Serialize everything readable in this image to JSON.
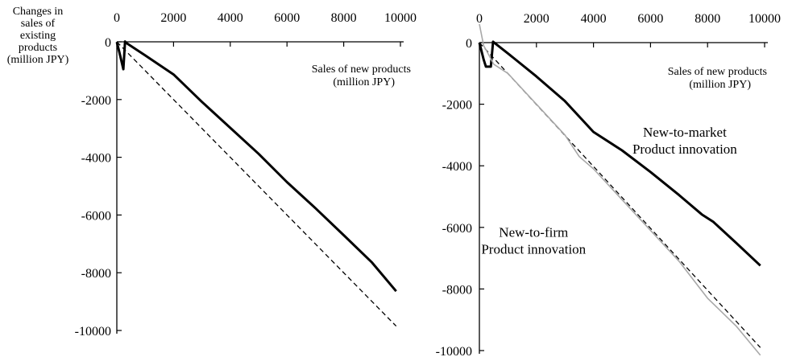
{
  "chart_data": [
    {
      "type": "line",
      "ylabel": [
        "Changes in",
        "sales of",
        "existing",
        "products",
        "(million JPY)"
      ],
      "xlabel": [
        "Sales of new products",
        "(million JPY)"
      ],
      "xlim": [
        0,
        10000
      ],
      "ylim": [
        -10000,
        0
      ],
      "x_ticks": [
        0,
        2000,
        4000,
        6000,
        8000,
        10000
      ],
      "y_ticks": [
        0,
        -2000,
        -4000,
        -6000,
        -8000,
        -10000
      ],
      "x_tick_labels": [
        "0",
        "2000",
        "4000",
        "6000",
        "8000",
        "10000"
      ],
      "y_tick_labels": [
        "0",
        "-2000",
        "-4000",
        "-6000",
        "-8000",
        "-10000"
      ],
      "annotations": [],
      "series": [
        {
          "style": "solid-bold",
          "color": "#000000",
          "points": [
            [
              0,
              -10
            ],
            [
              100,
              -400
            ],
            [
              230,
              -950
            ],
            [
              290,
              10
            ],
            [
              320,
              -30
            ],
            [
              1000,
              -470
            ],
            [
              2000,
              -1130
            ],
            [
              3000,
              -2080
            ],
            [
              4000,
              -2980
            ],
            [
              5000,
              -3880
            ],
            [
              6000,
              -4860
            ],
            [
              7000,
              -5760
            ],
            [
              8000,
              -6700
            ],
            [
              9000,
              -7650
            ],
            [
              9850,
              -8640
            ]
          ]
        },
        {
          "style": "dashed",
          "color": "#000000",
          "points": [
            [
              0,
              0
            ],
            [
              9850,
              -9850
            ]
          ]
        }
      ]
    },
    {
      "type": "line",
      "ylabel": [],
      "xlabel": [
        "Sales of new products",
        "(million JPY)"
      ],
      "xlim": [
        0,
        10000
      ],
      "ylim": [
        -10000,
        0
      ],
      "x_ticks": [
        0,
        2000,
        4000,
        6000,
        8000,
        10000
      ],
      "y_ticks": [
        0,
        -2000,
        -4000,
        -6000,
        -8000,
        -10000
      ],
      "x_tick_labels": [
        "0",
        "2000",
        "4000",
        "6000",
        "8000",
        "10000"
      ],
      "y_tick_labels": [
        "0",
        "-2000",
        "-4000",
        "-6000",
        "-8000",
        "-10000"
      ],
      "annotations": [
        {
          "lines": [
            "New-to-market",
            "Product innovation"
          ],
          "at": [
            7200,
            -3050
          ]
        },
        {
          "lines": [
            "New-to-firm",
            "Product innovation"
          ],
          "at": [
            1900,
            -6300
          ]
        }
      ],
      "series": [
        {
          "name": "New-to-market Product innovation",
          "style": "solid-bold",
          "color": "#000000",
          "points": [
            [
              0,
              0
            ],
            [
              150,
              -550
            ],
            [
              230,
              -780
            ],
            [
              400,
              -780
            ],
            [
              480,
              30
            ],
            [
              1000,
              -350
            ],
            [
              2000,
              -1100
            ],
            [
              3000,
              -1900
            ],
            [
              4000,
              -2900
            ],
            [
              5000,
              -3500
            ],
            [
              6000,
              -4200
            ],
            [
              7000,
              -4950
            ],
            [
              7800,
              -5580
            ],
            [
              8200,
              -5820
            ],
            [
              9000,
              -6500
            ],
            [
              9850,
              -7240
            ]
          ]
        },
        {
          "style": "dashed",
          "color": "#000000",
          "points": [
            [
              0,
              0
            ],
            [
              9850,
              -9900
            ]
          ]
        },
        {
          "name": "New-to-firm Product innovation",
          "style": "solid-gray",
          "color": "#a8a8a8",
          "points": [
            [
              0,
              600
            ],
            [
              150,
              -100
            ],
            [
              300,
              -350
            ],
            [
              500,
              -700
            ],
            [
              1000,
              -1000
            ],
            [
              2000,
              -2000
            ],
            [
              3000,
              -3000
            ],
            [
              3500,
              -3700
            ],
            [
              4000,
              -4100
            ],
            [
              5000,
              -5100
            ],
            [
              6000,
              -6100
            ],
            [
              7000,
              -7100
            ],
            [
              8000,
              -8300
            ],
            [
              9000,
              -9200
            ],
            [
              9850,
              -10150
            ]
          ]
        }
      ]
    }
  ]
}
